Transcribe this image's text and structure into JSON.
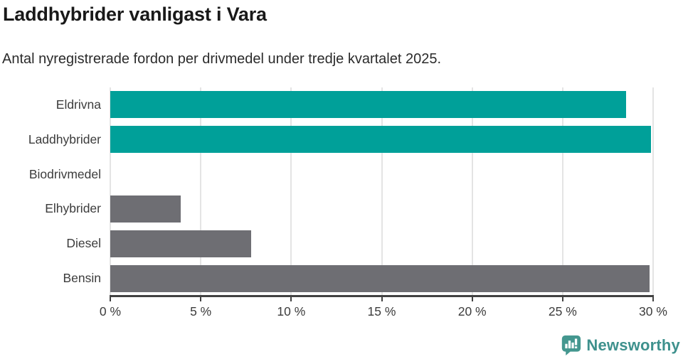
{
  "header": {
    "title": "Laddhybrider vanligast i Vara",
    "subtitle": "Antal nyregistrerade fordon per drivmedel under tredje kvartalet 2025."
  },
  "chart_data": {
    "type": "bar",
    "orientation": "horizontal",
    "title": "Laddhybrider vanligast i Vara",
    "subtitle": "Antal nyregistrerade fordon per drivmedel under tredje kvartalet 2025.",
    "categories": [
      "Eldrivna",
      "Laddhybrider",
      "Biodrivmedel",
      "Elhybrider",
      "Diesel",
      "Bensin"
    ],
    "values": [
      28.5,
      29.9,
      0,
      3.9,
      7.8,
      29.8
    ],
    "unit": "%",
    "xlim": [
      0,
      30
    ],
    "x_tick_values": [
      0,
      5,
      10,
      15,
      20,
      25,
      30
    ],
    "x_tick_labels": [
      "0 %",
      "5 %",
      "10 %",
      "15 %",
      "20 %",
      "25 %",
      "30 %"
    ],
    "bar_colors": [
      "#00A099",
      "#00A099",
      "#6E6E73",
      "#6E6E73",
      "#6E6E73",
      "#6E6E73"
    ],
    "grid": true,
    "legend": "none",
    "xlabel": "",
    "ylabel": ""
  },
  "footer": {
    "brand": "Newsworthy",
    "logo_icon": "newsworthy-speech-bubble-bar-chart"
  },
  "colors": {
    "highlight_teal": "#00A099",
    "neutral_gray": "#6E6E73",
    "brand_teal": "#3E918D",
    "axis": "#414141",
    "gridline": "#e4e4e4",
    "title_text": "#191919",
    "body_text": "#2b2b2b"
  }
}
